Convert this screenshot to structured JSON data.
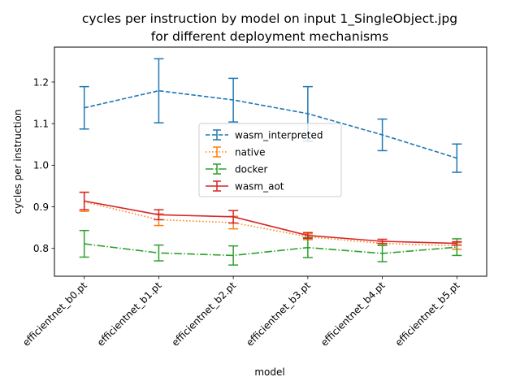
{
  "chart_data": {
    "type": "line",
    "title": "cycles per instruction by model on input 1_SingleObject.jpg",
    "subtitle": "for different deployment mechanisms",
    "xlabel": "model",
    "ylabel": "cycles per instruction",
    "categories": [
      "efficientnet_b0.pt",
      "efficientnet_b1.pt",
      "efficientnet_b2.pt",
      "efficientnet_b3.pt",
      "efficientnet_b4.pt",
      "efficientnet_b5.pt"
    ],
    "ylim": [
      0.733,
      1.284
    ],
    "yticks": [
      0.8,
      0.9,
      1.0,
      1.1,
      1.2
    ],
    "ytick_labels": [
      "0.8",
      "0.9",
      "1.0",
      "1.1",
      "1.2"
    ],
    "grid": false,
    "legend_position": "center",
    "series": [
      {
        "name": "wasm_interpreted",
        "color": "#1f77b4",
        "linestyle": "dashed",
        "values": [
          1.138,
          1.179,
          1.157,
          1.124,
          1.073,
          1.017
        ],
        "err_low": [
          1.087,
          1.102,
          1.104,
          1.058,
          1.035,
          0.983
        ],
        "err_high": [
          1.189,
          1.256,
          1.209,
          1.189,
          1.111,
          1.051
        ]
      },
      {
        "name": "native",
        "color": "#ff7f0e",
        "linestyle": "dotted",
        "values": [
          0.912,
          0.869,
          0.862,
          0.828,
          0.812,
          0.806
        ],
        "err_low": [
          0.889,
          0.855,
          0.847,
          0.821,
          0.807,
          0.798
        ],
        "err_high": [
          0.935,
          0.883,
          0.877,
          0.835,
          0.817,
          0.814
        ]
      },
      {
        "name": "docker",
        "color": "#2ca02c",
        "linestyle": "dashdot",
        "values": [
          0.811,
          0.789,
          0.783,
          0.802,
          0.788,
          0.803
        ],
        "err_low": [
          0.779,
          0.77,
          0.76,
          0.778,
          0.768,
          0.783
        ],
        "err_high": [
          0.843,
          0.808,
          0.806,
          0.826,
          0.808,
          0.823
        ]
      },
      {
        "name": "wasm_aot",
        "color": "#d62728",
        "linestyle": "solid",
        "values": [
          0.914,
          0.881,
          0.876,
          0.831,
          0.817,
          0.812
        ],
        "err_low": [
          0.893,
          0.869,
          0.861,
          0.824,
          0.812,
          0.808
        ],
        "err_high": [
          0.935,
          0.893,
          0.891,
          0.838,
          0.822,
          0.816
        ]
      }
    ]
  }
}
